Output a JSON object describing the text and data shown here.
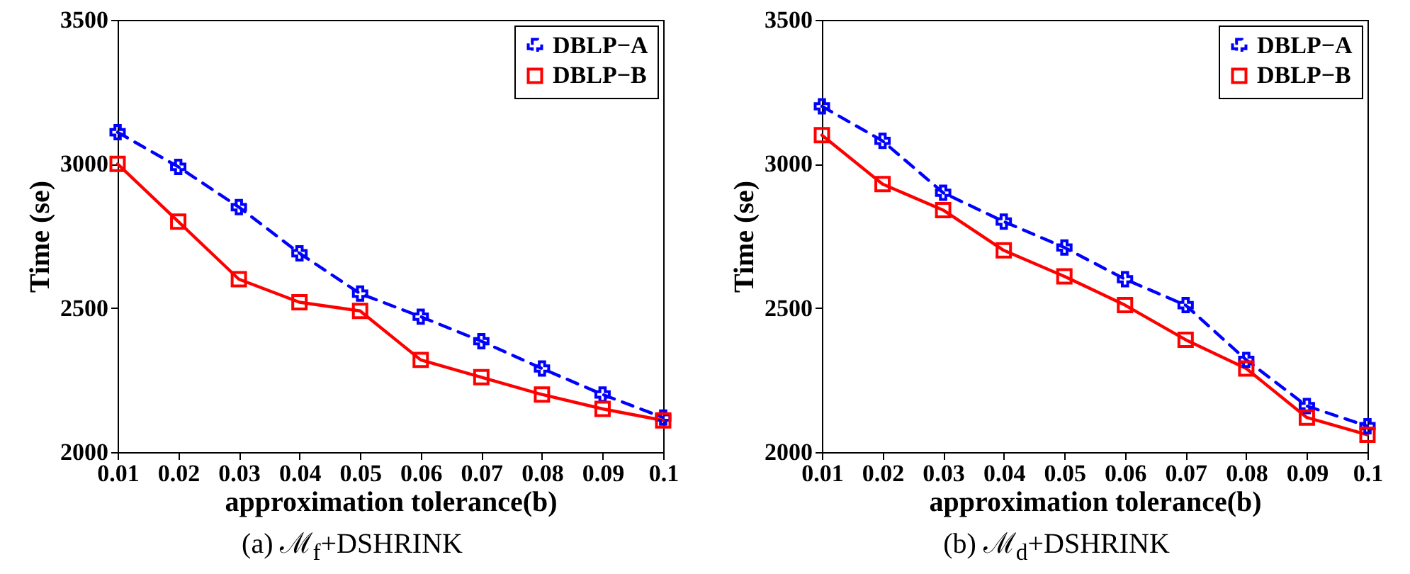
{
  "chart_data": [
    {
      "type": "line",
      "xlabel": "approximation tolerance(b)",
      "ylabel": "Time (se)",
      "x": [
        0.01,
        0.02,
        0.03,
        0.04,
        0.05,
        0.06,
        0.07,
        0.08,
        0.09,
        0.1
      ],
      "xlim": [
        0.01,
        0.1
      ],
      "xticks": [
        0.01,
        0.02,
        0.03,
        0.04,
        0.05,
        0.06,
        0.07,
        0.08,
        0.09,
        0.1
      ],
      "ylim": [
        2000,
        3500
      ],
      "yticks": [
        2000,
        2500,
        3000,
        3500
      ],
      "grid": false,
      "legend": "top right",
      "annotations": [
        "(a) ℳ$_{f}$+DSHRINK"
      ],
      "series": [
        {
          "name": "DBLP−A",
          "color": "#0000ff",
          "marker": "cross",
          "line_style": "dashed",
          "values": [
            3110,
            2990,
            2850,
            2690,
            2550,
            2470,
            2385,
            2290,
            2200,
            2120
          ]
        },
        {
          "name": "DBLP−B",
          "color": "#ff0000",
          "marker": "square",
          "line_style": "solid",
          "values": [
            3000,
            2800,
            2600,
            2520,
            2490,
            2320,
            2260,
            2200,
            2150,
            2110
          ]
        }
      ]
    },
    {
      "type": "line",
      "xlabel": "approximation tolerance(b)",
      "ylabel": "Time (se)",
      "x": [
        0.01,
        0.02,
        0.03,
        0.04,
        0.05,
        0.06,
        0.07,
        0.08,
        0.09,
        0.1
      ],
      "xlim": [
        0.01,
        0.1
      ],
      "xticks": [
        0.01,
        0.02,
        0.03,
        0.04,
        0.05,
        0.06,
        0.07,
        0.08,
        0.09,
        0.1
      ],
      "ylim": [
        2000,
        3500
      ],
      "yticks": [
        2000,
        2500,
        3000,
        3500
      ],
      "grid": false,
      "legend": "top right",
      "annotations": [
        "(b) ℳ$_{d}$+DSHRINK"
      ],
      "series": [
        {
          "name": "DBLP−A",
          "color": "#0000ff",
          "marker": "cross",
          "line_style": "dashed",
          "values": [
            3200,
            3080,
            2900,
            2800,
            2710,
            2600,
            2510,
            2320,
            2160,
            2090
          ]
        },
        {
          "name": "DBLP−B",
          "color": "#ff0000",
          "marker": "square",
          "line_style": "solid",
          "values": [
            3100,
            2930,
            2840,
            2700,
            2610,
            2510,
            2390,
            2290,
            2120,
            2060
          ]
        }
      ]
    }
  ]
}
